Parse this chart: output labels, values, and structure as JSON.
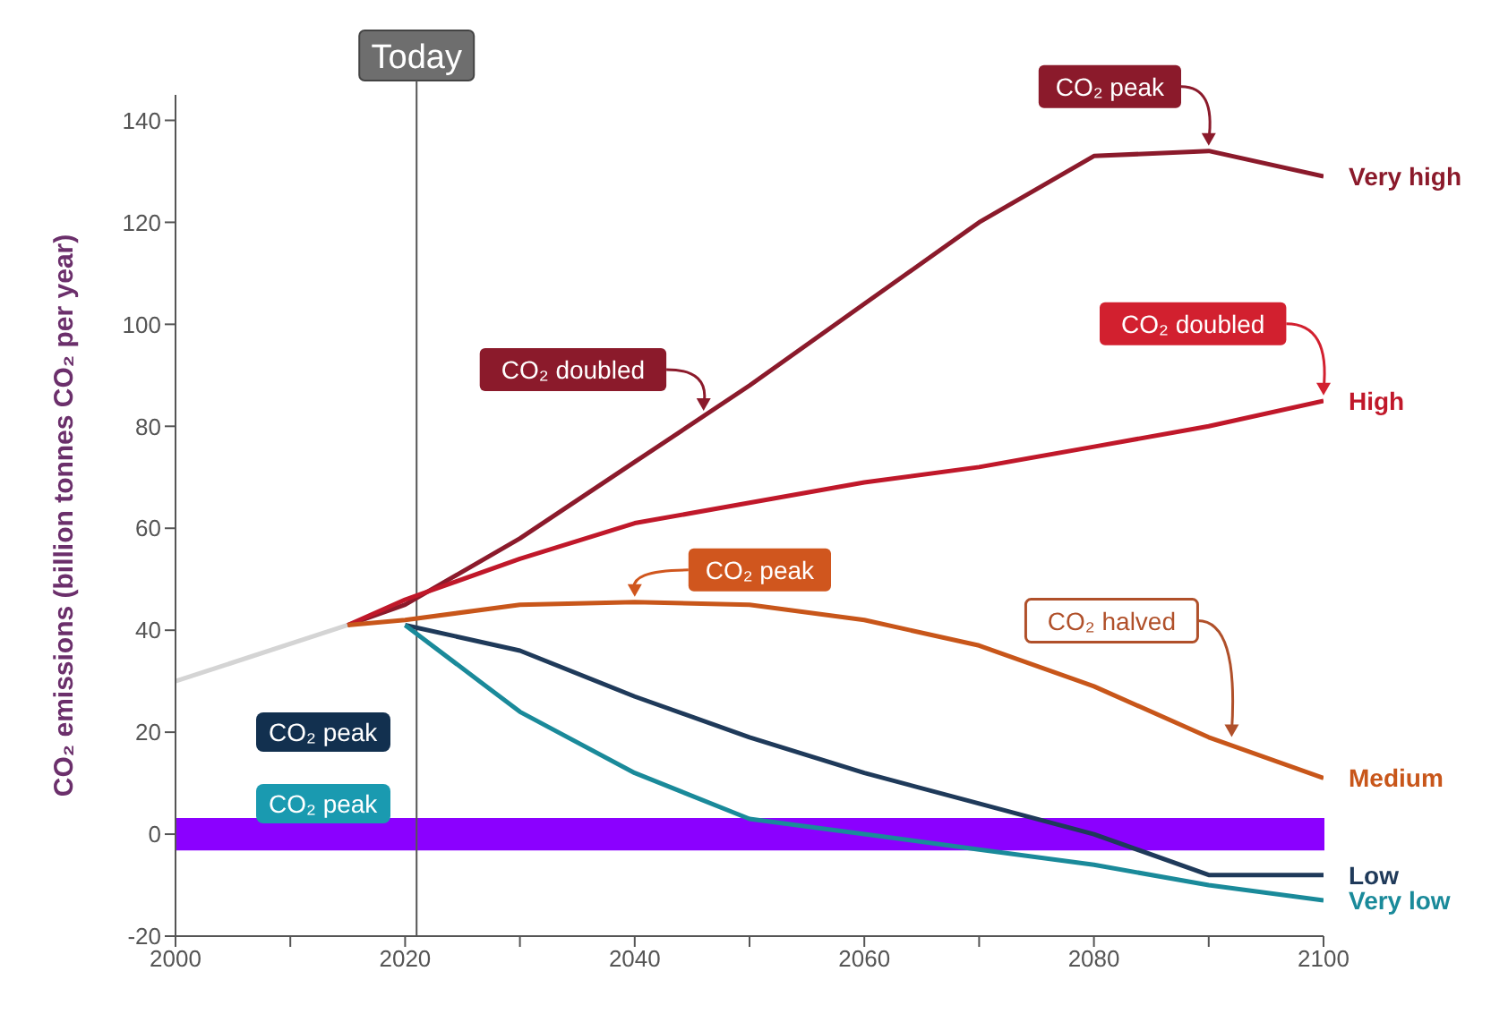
{
  "chart_data": {
    "type": "line",
    "ylabel": "CO₂ emissions (billion tonnes CO₂ per year)",
    "xlim": [
      2000,
      2100
    ],
    "xticks": [
      2000,
      {
        "value": 2010,
        "label": null
      },
      2020,
      {
        "value": 2030,
        "label": null
      },
      2040,
      {
        "value": 2050,
        "label": null
      },
      2060,
      {
        "value": 2070,
        "label": null
      },
      2080,
      {
        "value": 2090,
        "label": null
      },
      2100
    ],
    "ylim": [
      -20,
      145
    ],
    "yticks": [
      -20,
      0,
      20,
      40,
      60,
      80,
      100,
      120,
      140
    ],
    "grid": false,
    "legend": false,
    "marker": "none",
    "line_style": "solid",
    "series": [
      {
        "color": "#d4d4d4",
        "x": [
          2000,
          2015
        ],
        "values": [
          30,
          41
        ]
      },
      {
        "name": "Very high",
        "color": "#8b1a2b",
        "x": [
          2015,
          2020,
          2030,
          2040,
          2050,
          2060,
          2070,
          2080,
          2090,
          2100
        ],
        "values": [
          41,
          45,
          58,
          73,
          88,
          104,
          120,
          133,
          134,
          129
        ]
      },
      {
        "name": "High",
        "color": "#c0182a",
        "x": [
          2015,
          2020,
          2030,
          2040,
          2050,
          2060,
          2070,
          2080,
          2090,
          2100
        ],
        "values": [
          41,
          46,
          54,
          61,
          65,
          69,
          72,
          76,
          80,
          85
        ]
      },
      {
        "name": "Medium",
        "color": "#c8561a",
        "x": [
          2015,
          2020,
          2030,
          2040,
          2050,
          2060,
          2070,
          2080,
          2090,
          2100
        ],
        "values": [
          41,
          42,
          45,
          45.5,
          45,
          42,
          37,
          29,
          19,
          11
        ]
      },
      {
        "name": "Low",
        "color": "#1f3a5a",
        "x": [
          2020,
          2030,
          2040,
          2050,
          2060,
          2070,
          2080,
          2090,
          2100
        ],
        "values": [
          41,
          36,
          27,
          19,
          12,
          6,
          0,
          -8,
          -8
        ]
      },
      {
        "name": "Very low",
        "color": "#1a8a9a",
        "x": [
          2020,
          2030,
          2040,
          2050,
          2060,
          2070,
          2080,
          2090,
          2100
        ],
        "values": [
          41,
          24,
          12,
          3,
          0,
          -3,
          -6,
          -10,
          -13
        ]
      }
    ],
    "ref_lines": [
      {
        "axis": "x",
        "value": 2021,
        "label": "Today",
        "color": "#555555"
      }
    ],
    "bands": [
      {
        "axis": "y",
        "from": -3,
        "to": 3,
        "color": "#8b00ff"
      }
    ],
    "annotations": [
      {
        "text": "CO₂ peak",
        "x": 2090,
        "y": 134
      },
      {
        "text": "CO₂ doubled",
        "x": 2046,
        "y": 82
      },
      {
        "text": "CO₂ doubled",
        "x": 2100,
        "y": 85
      },
      {
        "text": "CO₂ peak",
        "x": 2040,
        "y": 45.5
      },
      {
        "text": "CO₂ halved",
        "x": 2092,
        "y": 18
      },
      "CO₂ peak",
      "CO₂ peak"
    ]
  }
}
